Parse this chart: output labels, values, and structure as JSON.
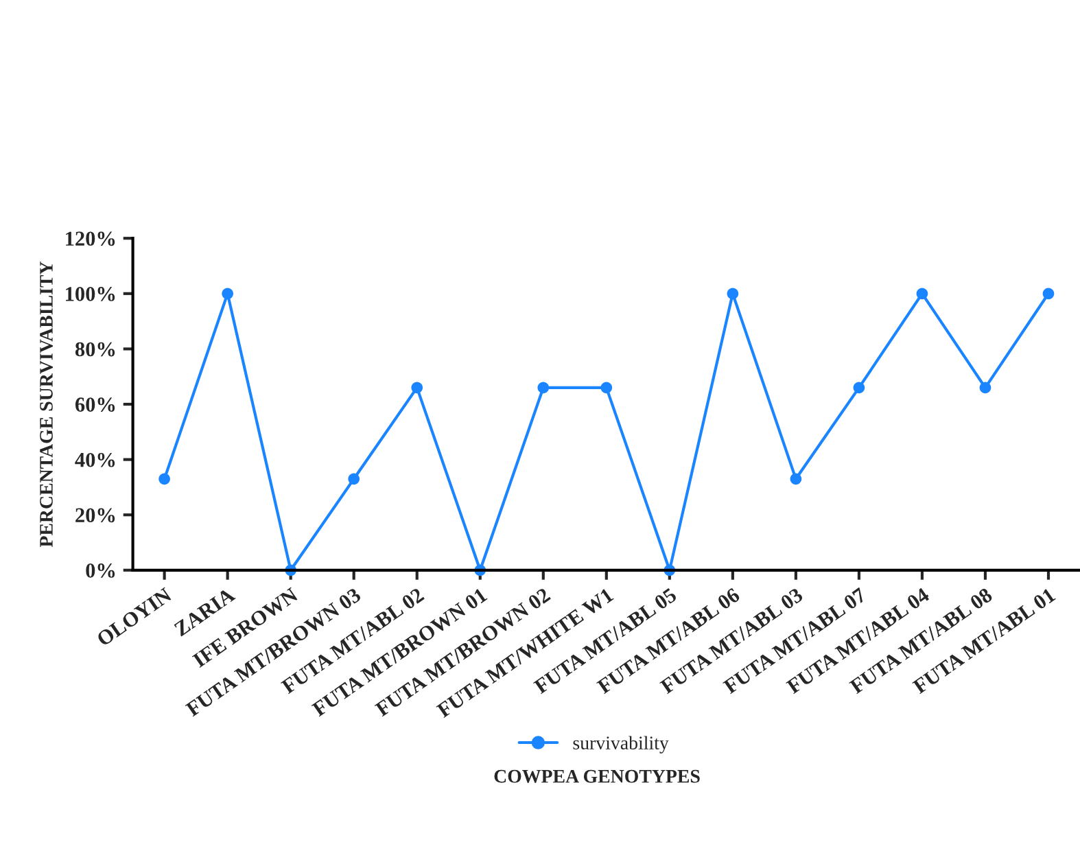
{
  "chart_data": {
    "type": "line",
    "xlabel": "COWPEA GENOTYPES",
    "ylabel": "PERCENTAGE SURVIVABILITY",
    "categories": [
      "OLOYIN",
      "ZARIA",
      "IFE BROWN",
      "FUTA MT/BROWN 03",
      "FUTA MT/ABL 02",
      "FUTA MT/BROWN 01",
      "FUTA MT/BROWN 02",
      "FUTA MT/WHITE W1",
      "FUTA MT/ABL 05",
      "FUTA MT/ABL 06",
      "FUTA MT/ABL 03",
      "FUTA MT/ABL 07",
      "FUTA MT/ABL 04",
      "FUTA MT/ABL 08",
      "FUTA MT/ABL 01"
    ],
    "series": [
      {
        "name": "survivability",
        "color": "#1a85ff",
        "values": [
          33,
          100,
          0,
          33,
          66,
          0,
          66,
          66,
          0,
          100,
          33,
          66,
          100,
          66,
          100
        ]
      }
    ],
    "ylim": [
      0,
      120
    ],
    "yticks": [
      {
        "value": 0,
        "label": "0%"
      },
      {
        "value": 20,
        "label": "20%"
      },
      {
        "value": 40,
        "label": "40%"
      },
      {
        "value": 60,
        "label": "60%"
      },
      {
        "value": 80,
        "label": "80%"
      },
      {
        "value": 100,
        "label": "100%"
      },
      {
        "value": 120,
        "label": "120%"
      }
    ],
    "marker": "circle",
    "line_style": "solid",
    "legend": "bottom",
    "grid": false
  }
}
